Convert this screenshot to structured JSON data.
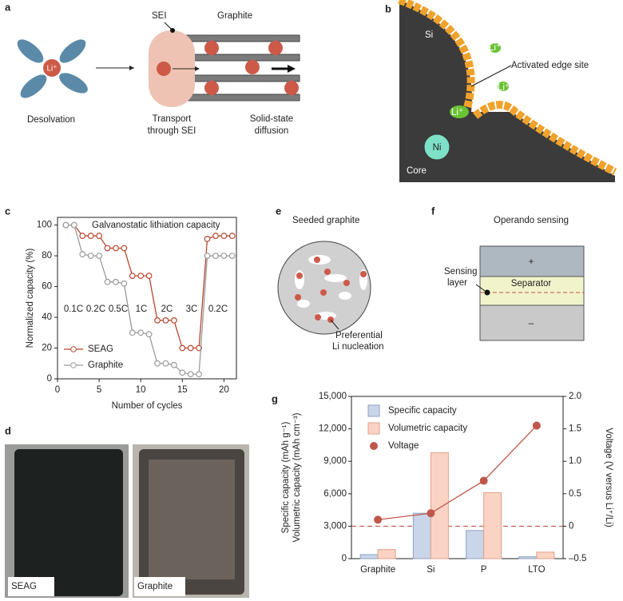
{
  "panel_a": {
    "letter": "a",
    "sei": "SEI",
    "graphite": "Graphite",
    "ion": "Li⁺",
    "desolvation": "Desolvation",
    "transport": [
      "Transport",
      "through SEI"
    ],
    "diffusion": [
      "Solid-state",
      "diffusion"
    ]
  },
  "panel_b": {
    "letter": "b",
    "si": "Si",
    "ions": [
      "Li⁺",
      "Li⁺",
      "Li⁺"
    ],
    "edge": "Activated edge site",
    "ni": "Ni",
    "core": "Core"
  },
  "panel_c": {
    "letter": "c"
  },
  "panel_d": {
    "letter": "d",
    "labels": [
      "SEAG",
      "Graphite"
    ]
  },
  "panel_e": {
    "letter": "e",
    "title": "Seeded graphite",
    "note": [
      "Preferential",
      "Li nucleation"
    ]
  },
  "panel_f": {
    "letter": "f",
    "title": "Operando sensing",
    "plus": "+",
    "separator": "Separator",
    "minus": "–",
    "layer": [
      "Sensing",
      "layer"
    ]
  },
  "panel_g": {
    "letter": "g"
  },
  "chart_data": [
    {
      "type": "line",
      "title": "Galvanostatic lithiation capacity",
      "x_label": "Number of cycles",
      "y_label": "Normalized capacity (%)",
      "x": [
        1,
        2,
        3,
        4,
        5,
        6,
        7,
        8,
        9,
        10,
        11,
        12,
        13,
        14,
        15,
        16,
        17,
        18,
        19,
        20,
        21
      ],
      "series": [
        {
          "name": "SEAG",
          "color": "#b5472f",
          "values": [
            100,
            100,
            93,
            93,
            93,
            85,
            85,
            85,
            67,
            67,
            67,
            38,
            38,
            38,
            20,
            20,
            20,
            91,
            93,
            93,
            93
          ]
        },
        {
          "name": "Graphite",
          "color": "#9a9a9a",
          "values": [
            100,
            100,
            81,
            80,
            80,
            63,
            63,
            62,
            30,
            30,
            29,
            10,
            10,
            9,
            4,
            3,
            3,
            80,
            80,
            80,
            80
          ]
        }
      ],
      "annotations": [
        "0.1C",
        "0.2C",
        "0.5C",
        "1C",
        "2C",
        "3C",
        "0.2C"
      ],
      "xlim": [
        0,
        21.5
      ],
      "xticks": [
        0,
        5,
        10,
        15,
        20
      ],
      "ylim": [
        0,
        105
      ],
      "yticks": [
        0,
        20,
        40,
        60,
        80,
        100
      ],
      "legend": "lower left"
    },
    {
      "type": "bar",
      "categories": [
        "Graphite",
        "Si",
        "P",
        "LTO"
      ],
      "y_label": [
        "Specific capacity (mAh g⁻¹)",
        "Volumetric capacity (mAh cm⁻³)"
      ],
      "y2_label": "Voltage (V versus Li⁺/Li)",
      "series": [
        {
          "name": "Specific capacity",
          "color": "#c9d5e8",
          "values": [
            372,
            4200,
            2600,
            175
          ]
        },
        {
          "name": "Volumetric capacity",
          "color": "#fad3c4",
          "values": [
            840,
            9800,
            6100,
            600
          ]
        },
        {
          "name": "Voltage",
          "color": "#c0574a",
          "axis": "y2",
          "values": [
            0.1,
            0.2,
            0.7,
            1.55
          ]
        }
      ],
      "ylim": [
        0,
        15000
      ],
      "yticks": [
        0,
        {
          "value": 3000,
          "label": "3,000"
        },
        {
          "value": 6000,
          "label": "6,000"
        },
        {
          "value": 9000,
          "label": "9,000"
        },
        {
          "value": 12000,
          "label": "12,000"
        },
        {
          "value": 15000,
          "label": "15,000"
        }
      ],
      "y2lim": [
        -0.5,
        2.0
      ],
      "y2ticks": [
        {
          "value": -0.5,
          "label": "–0.5"
        },
        0,
        0.5,
        {
          "value": 1.0,
          "label": "1.0"
        },
        1.5,
        {
          "value": 2.0,
          "label": "2.0"
        }
      ],
      "y2_refline": 0,
      "legend": "upper left"
    }
  ]
}
